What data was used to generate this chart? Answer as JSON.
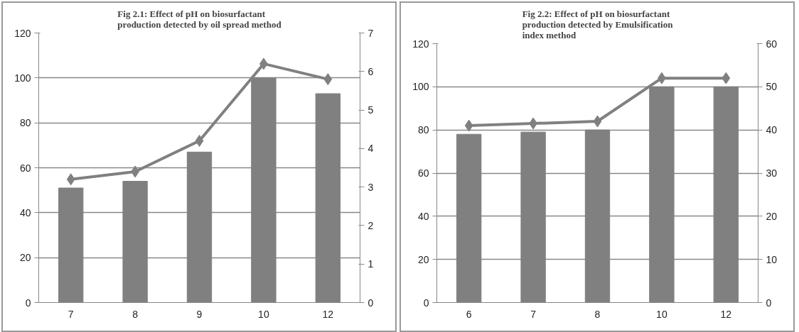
{
  "chart_data": [
    {
      "type": "bar",
      "title": "Fig 2.1: Effect of pH on biosurfactant production detected by oil spread method",
      "categories": [
        "7",
        "8",
        "9",
        "10",
        "12"
      ],
      "series": [
        {
          "color": "#808080",
          "values": [
            51,
            54,
            67,
            100,
            93
          ]
        },
        {
          "type": "line",
          "axis": "y2",
          "color": "#808080",
          "values": [
            3.2,
            3.4,
            4.2,
            6.2,
            5.8
          ]
        }
      ],
      "ylim": [
        0,
        120
      ],
      "yticks": [
        0,
        20,
        40,
        60,
        80,
        100,
        120
      ],
      "y2lim": [
        0,
        7
      ],
      "y2ticks": [
        0,
        1,
        2,
        3,
        4,
        5,
        6,
        7
      ],
      "grid": "y",
      "marker": "diamond",
      "line_style": "solid"
    },
    {
      "type": "bar",
      "title": "Fig 2.2: Effect of pH on biosurfactant production detected by Emulsification index method",
      "categories": [
        "6",
        "7",
        "8",
        "10",
        "12"
      ],
      "series": [
        {
          "color": "#808080",
          "values": [
            78,
            79,
            80,
            100,
            100
          ]
        },
        {
          "type": "line",
          "axis": "y2",
          "color": "#808080",
          "values": [
            41,
            41.5,
            42,
            52,
            52
          ]
        }
      ],
      "ylim": [
        0,
        120
      ],
      "yticks": [
        0,
        20,
        40,
        60,
        80,
        100,
        120
      ],
      "y2lim": [
        0,
        60
      ],
      "y2ticks": [
        0,
        10,
        20,
        30,
        40,
        50,
        60
      ],
      "grid": "y",
      "marker": "diamond",
      "line_style": "solid"
    }
  ]
}
